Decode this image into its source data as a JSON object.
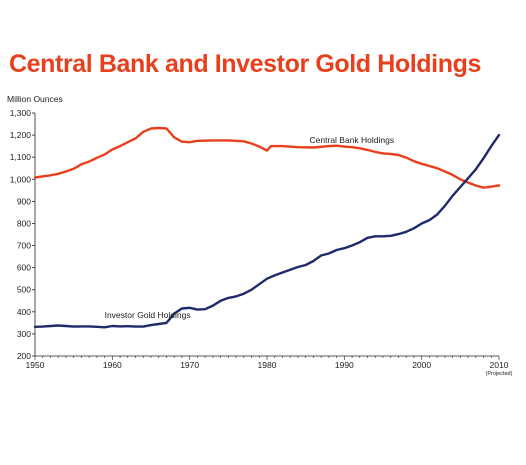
{
  "chart_data": {
    "type": "line",
    "title": "Central Bank and Investor Gold Holdings",
    "title_color": "#e8401c",
    "ylabel": "Million Ounces",
    "xlabel": "",
    "xlim": [
      1950,
      2010
    ],
    "ylim": [
      200,
      1300
    ],
    "x_ticks": [
      1950,
      1960,
      1970,
      1980,
      1990,
      2000,
      2010
    ],
    "y_ticks": [
      200,
      300,
      400,
      500,
      600,
      700,
      800,
      900,
      1000,
      1100,
      1200,
      1300
    ],
    "y_tick_labels": [
      "200",
      "300",
      "400",
      "500",
      "600",
      "700",
      "800",
      "900",
      "1,000",
      "1,100",
      "1,200",
      "1,300"
    ],
    "x_tick_note": "(Projected)",
    "grid": false,
    "legend": "none",
    "series": [
      {
        "name": "Central Bank Holdings",
        "color": "#e8401c",
        "points": [
          [
            1950,
            1008
          ],
          [
            1952,
            1018
          ],
          [
            1953,
            1025
          ],
          [
            1954,
            1035
          ],
          [
            1955,
            1048
          ],
          [
            1956,
            1068
          ],
          [
            1957,
            1080
          ],
          [
            1958,
            1097
          ],
          [
            1959,
            1112
          ],
          [
            1960,
            1135
          ],
          [
            1961,
            1150
          ],
          [
            1962,
            1168
          ],
          [
            1963,
            1185
          ],
          [
            1964,
            1215
          ],
          [
            1965,
            1230
          ],
          [
            1966,
            1232
          ],
          [
            1967,
            1230
          ],
          [
            1968,
            1190
          ],
          [
            1969,
            1170
          ],
          [
            1970,
            1168
          ],
          [
            1971,
            1174
          ],
          [
            1973,
            1176
          ],
          [
            1975,
            1176
          ],
          [
            1977,
            1172
          ],
          [
            1978,
            1162
          ],
          [
            1979,
            1148
          ],
          [
            1980,
            1130
          ],
          [
            1980.5,
            1150
          ],
          [
            1982,
            1150
          ],
          [
            1984,
            1145
          ],
          [
            1986,
            1144
          ],
          [
            1988,
            1150
          ],
          [
            1989,
            1152
          ],
          [
            1990,
            1148
          ],
          [
            1991,
            1145
          ],
          [
            1992,
            1140
          ],
          [
            1993,
            1133
          ],
          [
            1994,
            1124
          ],
          [
            1995,
            1117
          ],
          [
            1996,
            1115
          ],
          [
            1997,
            1110
          ],
          [
            1998,
            1098
          ],
          [
            1999,
            1082
          ],
          [
            2000,
            1070
          ],
          [
            2001,
            1060
          ],
          [
            2002,
            1050
          ],
          [
            2003,
            1035
          ],
          [
            2004,
            1020
          ],
          [
            2005,
            1000
          ],
          [
            2006,
            985
          ],
          [
            2007,
            972
          ],
          [
            2008,
            962
          ],
          [
            2009,
            967
          ],
          [
            2010,
            972
          ]
        ]
      },
      {
        "name": "Investor Gold Holdings",
        "color": "#1f2a6b",
        "points": [
          [
            1950,
            332
          ],
          [
            1951,
            333
          ],
          [
            1952,
            336
          ],
          [
            1953,
            338
          ],
          [
            1954,
            336
          ],
          [
            1955,
            333
          ],
          [
            1956,
            334
          ],
          [
            1957,
            334
          ],
          [
            1958,
            332
          ],
          [
            1959,
            330
          ],
          [
            1960,
            336
          ],
          [
            1961,
            334
          ],
          [
            1962,
            335
          ],
          [
            1963,
            333
          ],
          [
            1964,
            333
          ],
          [
            1965,
            340
          ],
          [
            1966,
            345
          ],
          [
            1967,
            350
          ],
          [
            1968,
            392
          ],
          [
            1969,
            415
          ],
          [
            1970,
            418
          ],
          [
            1971,
            410
          ],
          [
            1972,
            412
          ],
          [
            1973,
            428
          ],
          [
            1974,
            450
          ],
          [
            1975,
            463
          ],
          [
            1976,
            470
          ],
          [
            1977,
            482
          ],
          [
            1978,
            500
          ],
          [
            1979,
            525
          ],
          [
            1980,
            550
          ],
          [
            1981,
            565
          ],
          [
            1982,
            578
          ],
          [
            1983,
            590
          ],
          [
            1984,
            603
          ],
          [
            1985,
            612
          ],
          [
            1986,
            630
          ],
          [
            1987,
            655
          ],
          [
            1988,
            664
          ],
          [
            1989,
            680
          ],
          [
            1990,
            688
          ],
          [
            1991,
            700
          ],
          [
            1992,
            715
          ],
          [
            1993,
            735
          ],
          [
            1994,
            742
          ],
          [
            1995,
            742
          ],
          [
            1996,
            744
          ],
          [
            1997,
            752
          ],
          [
            1998,
            762
          ],
          [
            1999,
            778
          ],
          [
            2000,
            800
          ],
          [
            2001,
            815
          ],
          [
            2002,
            840
          ],
          [
            2003,
            880
          ],
          [
            2004,
            925
          ],
          [
            2005,
            965
          ],
          [
            2006,
            1005
          ],
          [
            2007,
            1045
          ],
          [
            2008,
            1095
          ],
          [
            2009,
            1150
          ],
          [
            2010,
            1200
          ]
        ]
      }
    ]
  }
}
